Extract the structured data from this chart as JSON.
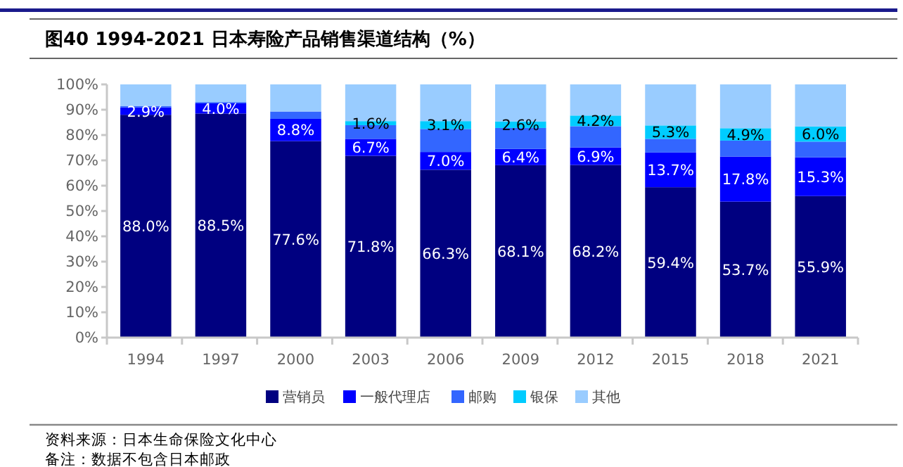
{
  "chart_data": {
    "type": "bar",
    "stacked": true,
    "title": "图40 1994-2021  日本寿险产品销售渠道结构（%）",
    "categories": [
      "1994",
      "1997",
      "2000",
      "2003",
      "2006",
      "2009",
      "2012",
      "2015",
      "2018",
      "2021"
    ],
    "ylim": [
      0,
      100
    ],
    "yticks": [
      {
        "value": 0,
        "label": "0%"
      },
      {
        "value": 10,
        "label": "10%"
      },
      {
        "value": 20,
        "label": "20%"
      },
      {
        "value": 30,
        "label": "30%"
      },
      {
        "value": 40,
        "label": "40%"
      },
      {
        "value": 50,
        "label": "50%"
      },
      {
        "value": 60,
        "label": "60%"
      },
      {
        "value": 70,
        "label": "70%"
      },
      {
        "value": 80,
        "label": "80%"
      },
      {
        "value": 90,
        "label": "90%"
      },
      {
        "value": 100,
        "label": "100%"
      }
    ],
    "grid": false,
    "legend": "bottom",
    "series": [
      {
        "name": "营销员",
        "color": "#000080",
        "values": [
          88.0,
          88.5,
          77.6,
          71.8,
          66.3,
          68.1,
          68.2,
          59.4,
          53.7,
          55.9
        ],
        "value_labels": [
          "88.0%",
          "88.5%",
          "77.6%",
          "71.8%",
          "66.3%",
          "68.1%",
          "68.2%",
          "59.4%",
          "53.7%",
          "55.9%"
        ]
      },
      {
        "name": "一般代理店",
        "color": "#0000ff",
        "values": [
          2.9,
          4.0,
          8.8,
          6.7,
          7.0,
          6.4,
          6.9,
          13.7,
          17.8,
          15.3
        ],
        "value_labels": [
          "2.9%",
          "4.0%",
          "8.8%",
          "6.7%",
          "7.0%",
          "6.4%",
          "6.9%",
          "13.7%",
          "17.8%",
          "15.3%"
        ]
      },
      {
        "name": "邮购",
        "color": "#3366ff",
        "values": [
          0.6,
          0.5,
          2.9,
          5.4,
          9.1,
          8.3,
          8.4,
          5.4,
          6.3,
          6.2
        ]
      },
      {
        "name": "银保",
        "color": "#00ccff",
        "values": [
          0,
          0,
          0,
          1.6,
          3.1,
          2.6,
          4.2,
          5.3,
          4.9,
          6.0
        ],
        "value_labels": [
          null,
          null,
          null,
          "1.6%",
          "3.1%",
          "2.6%",
          "4.2%",
          "5.3%",
          "4.9%",
          "6.0%"
        ]
      },
      {
        "name": "其他",
        "color": "#99ccff",
        "values": [
          8.5,
          7.0,
          10.7,
          14.5,
          14.5,
          14.6,
          12.3,
          16.2,
          17.3,
          16.6
        ]
      }
    ],
    "annotations": [
      "资料来源：日本生命保险文化中心",
      "备注：数据不包含日本邮政"
    ]
  }
}
